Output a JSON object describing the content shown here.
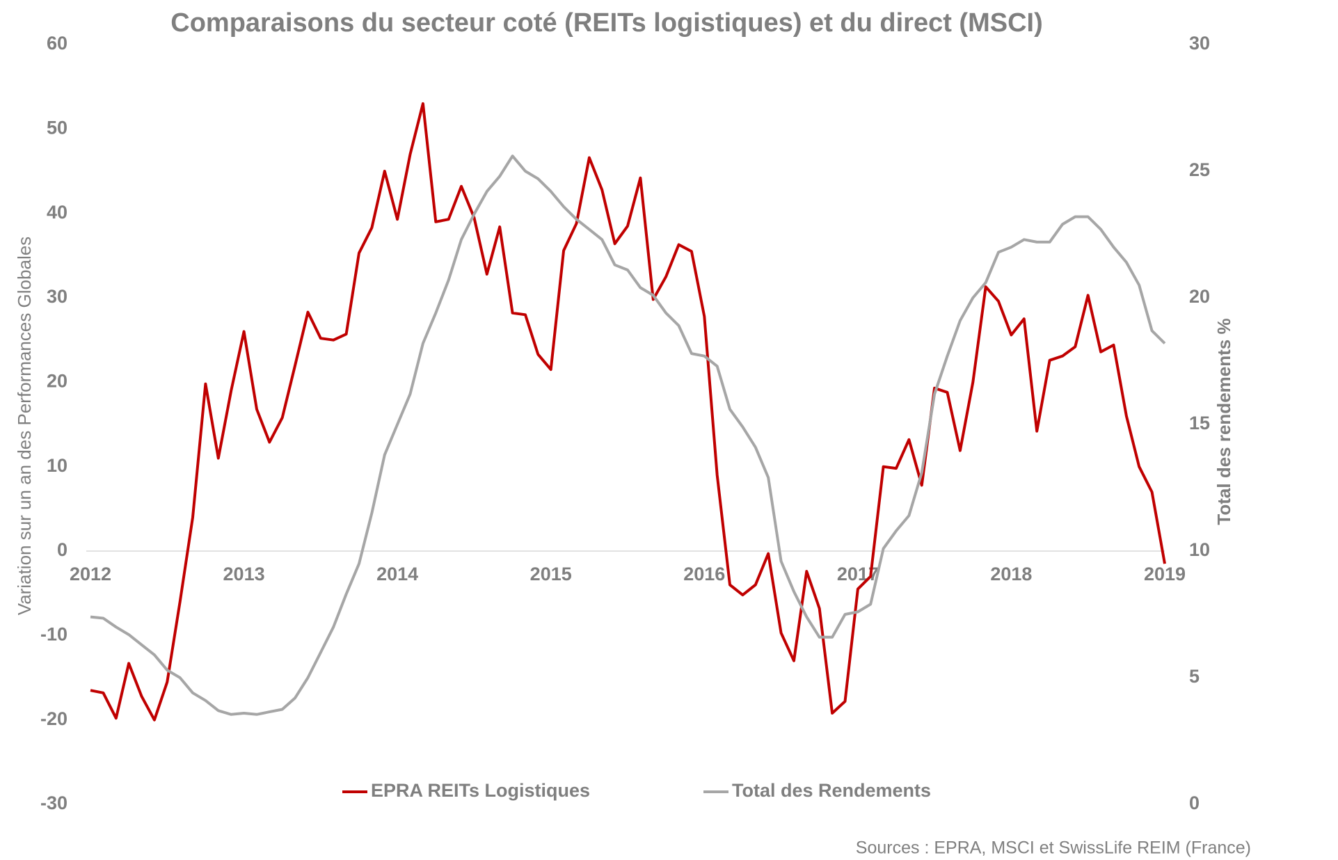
{
  "chart_data": {
    "type": "line",
    "title": "Comparaisons du secteur coté (REITs logistiques) et du direct (MSCI)",
    "ylabel": "Variation sur un an des Performances Globales",
    "y2label": "Total des rendements %",
    "source": "Sources : EPRA, MSCI et SwissLife REIM (France)",
    "categories": [
      "2012",
      null,
      null,
      null,
      null,
      null,
      null,
      null,
      null,
      null,
      null,
      null,
      "2013",
      null,
      null,
      null,
      null,
      null,
      null,
      null,
      null,
      null,
      null,
      null,
      "2014",
      null,
      null,
      null,
      null,
      null,
      null,
      null,
      null,
      null,
      null,
      null,
      "2015",
      null,
      null,
      null,
      null,
      null,
      null,
      null,
      null,
      null,
      null,
      null,
      "2016",
      null,
      null,
      null,
      null,
      null,
      null,
      null,
      null,
      null,
      null,
      null,
      "2017",
      null,
      null,
      null,
      null,
      null,
      null,
      null,
      null,
      null,
      null,
      null,
      "2018",
      null,
      null,
      null,
      null,
      null,
      null,
      null,
      null,
      null,
      null,
      null,
      "2019"
    ],
    "ylim": [
      -30,
      60
    ],
    "yticks": [
      -30,
      -20,
      -10,
      0,
      10,
      20,
      30,
      40,
      50,
      60
    ],
    "y2lim": [
      0,
      30
    ],
    "y2ticks": [
      0,
      5,
      10,
      15,
      20,
      25,
      30
    ],
    "zeroline": true,
    "legend": "bottom",
    "series": [
      {
        "name": "EPRA REITs Logistiques",
        "color": "#c00000",
        "axis": "y",
        "values": [
          -16.5,
          -16.8,
          -19.8,
          -13.3,
          -17.2,
          -20,
          -15.5,
          -6,
          4,
          19.8,
          11,
          19,
          26,
          16.8,
          12.9,
          15.8,
          22,
          28.3,
          25.2,
          25,
          25.7,
          35.3,
          38.3,
          45,
          39.3,
          47,
          53,
          39,
          39.3,
          43.2,
          39.5,
          32.8,
          38.4,
          28.2,
          28,
          23.3,
          21.5,
          35.6,
          38.8,
          46.6,
          42.8,
          36.4,
          38.5,
          44.2,
          29.8,
          32.5,
          36.3,
          35.5,
          27.8,
          9,
          -4,
          -5.2,
          -4,
          -0.3,
          -9.7,
          -13,
          -2.4,
          -6.8,
          -19.2,
          -17.8,
          -4.5,
          -3,
          10,
          9.8,
          13.2,
          7.8,
          19.3,
          18.8,
          11.9,
          20,
          31.3,
          29.6,
          25.6,
          27.5,
          14.2,
          22.6,
          23.1,
          24.2,
          30.3,
          23.6,
          24.4,
          16,
          10,
          7,
          -1.5
        ]
      },
      {
        "name": "Total des Rendements",
        "color": "#a6a6a6",
        "axis": "y2",
        "values": [
          7.4,
          7.35,
          7,
          6.7,
          6.3,
          5.9,
          5.3,
          5,
          4.4,
          4.1,
          3.7,
          3.55,
          3.6,
          3.55,
          3.65,
          3.75,
          4.2,
          5,
          6,
          7,
          8.3,
          9.5,
          11.5,
          13.8,
          15,
          16.2,
          18.2,
          19.4,
          20.7,
          22.3,
          23.3,
          24.2,
          24.8,
          25.6,
          25,
          24.7,
          24.2,
          23.6,
          23.1,
          22.7,
          22.3,
          21.3,
          21.1,
          20.4,
          20.1,
          19.4,
          18.9,
          17.8,
          17.7,
          17.3,
          15.6,
          14.9,
          14.1,
          12.9,
          9.6,
          8.4,
          7.4,
          6.6,
          6.6,
          7.5,
          7.6,
          7.9,
          10.1,
          10.8,
          11.4,
          13.1,
          16.2,
          17.7,
          19.1,
          20,
          20.6,
          21.8,
          22,
          22.3,
          22.2,
          22.2,
          22.9,
          23.2,
          23.2,
          22.7,
          22,
          21.4,
          20.5,
          18.7,
          18.2
        ]
      }
    ]
  }
}
